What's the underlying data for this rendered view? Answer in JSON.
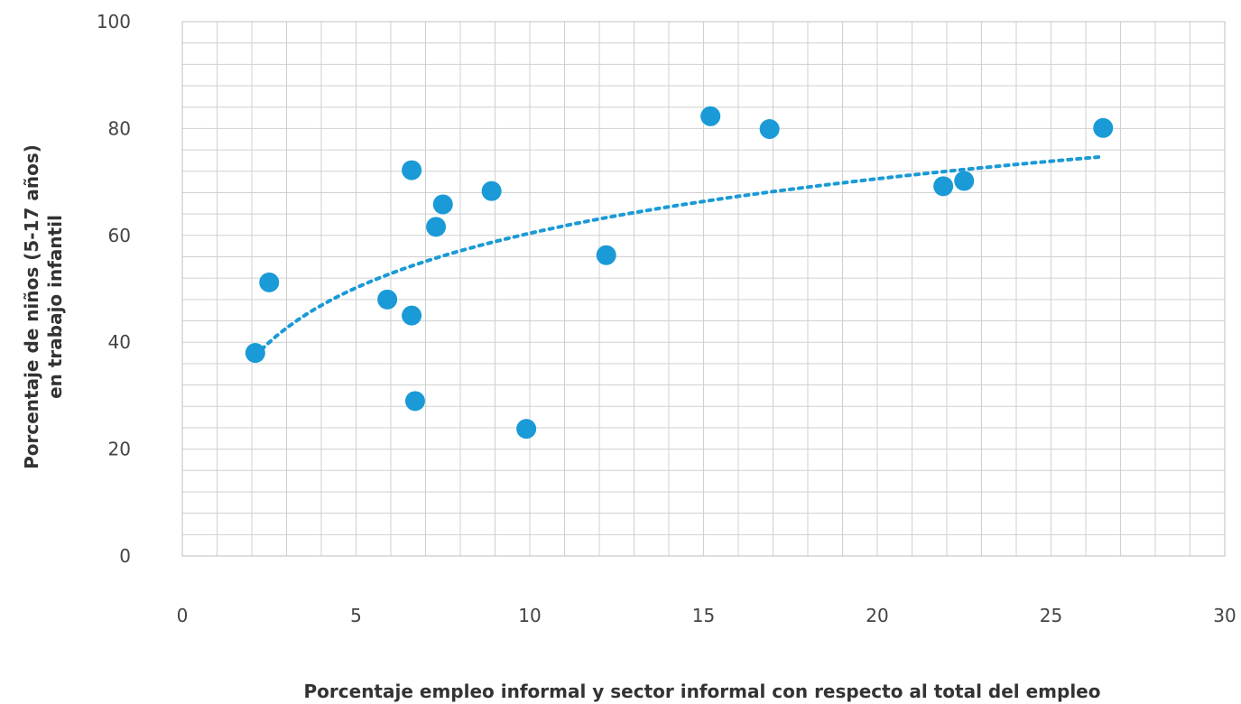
{
  "chart_data": {
    "type": "scatter",
    "title": "",
    "xlabel": "Porcentaje empleo informal y sector informal con respecto al total del empleo",
    "ylabel_lines": [
      "Porcentaje de niños (5-17 años)",
      "en trabajo infantil"
    ],
    "xlim": [
      0,
      30
    ],
    "ylim": [
      0,
      100
    ],
    "x_ticks": [
      0,
      5,
      10,
      15,
      20,
      25,
      30
    ],
    "y_ticks": [
      0,
      20,
      40,
      60,
      80,
      100
    ],
    "x_minor_step": 1,
    "y_minor_step": 4,
    "grid": true,
    "legend": "none",
    "series": [
      {
        "color": "#1a9ad6",
        "points": [
          {
            "x": 2.1,
            "y": 38
          },
          {
            "x": 2.5,
            "y": 51.2
          },
          {
            "x": 5.9,
            "y": 48
          },
          {
            "x": 6.6,
            "y": 72.2
          },
          {
            "x": 6.6,
            "y": 45
          },
          {
            "x": 6.7,
            "y": 29
          },
          {
            "x": 7.3,
            "y": 61.6
          },
          {
            "x": 7.5,
            "y": 65.8
          },
          {
            "x": 8.9,
            "y": 68.3
          },
          {
            "x": 9.9,
            "y": 23.8
          },
          {
            "x": 12.2,
            "y": 56.3
          },
          {
            "x": 15.2,
            "y": 82.3
          },
          {
            "x": 16.9,
            "y": 79.9
          },
          {
            "x": 21.9,
            "y": 69.2
          },
          {
            "x": 22.5,
            "y": 70.2
          },
          {
            "x": 26.5,
            "y": 80.1
          }
        ]
      }
    ],
    "trendline": {
      "type": "logarithmic",
      "style": "dotted",
      "color": "#1a9ad6",
      "x_range": [
        2.1,
        26.4
      ]
    }
  }
}
